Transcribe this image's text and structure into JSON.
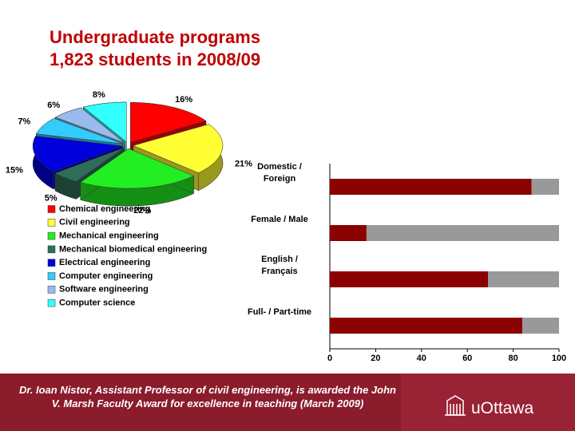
{
  "chart_data": [
    {
      "type": "pie",
      "title": "Undergraduate programs",
      "subtitle": "1,823 students in 2008/09",
      "categories": [
        "Chemical engineering",
        "Civil engineering",
        "Mechanical engineering",
        "Mechanical biomedical engineering",
        "Electrical engineering",
        "Computer engineering",
        "Software engineering",
        "Computer science"
      ],
      "values": [
        16,
        21,
        22,
        5,
        15,
        7,
        6,
        8
      ],
      "value_labels": [
        "16%",
        "21%",
        "22%",
        "5%",
        "15%",
        "7%",
        "6%",
        "8%"
      ],
      "colors": [
        "#ff0000",
        "#ffff33",
        "#22ee22",
        "#2e6e58",
        "#0000dd",
        "#33ccff",
        "#99bbee",
        "#33ffff"
      ]
    },
    {
      "type": "stacked-bar-horizontal",
      "categories": [
        "Domestic /\nForeign",
        "Female / Male",
        "English /\nFrançais",
        "Full- / Part-time"
      ],
      "series": [
        {
          "color": "#8b0000",
          "values": [
            88,
            16,
            69,
            84
          ]
        },
        {
          "color": "#999999",
          "values": [
            12,
            84,
            31,
            16
          ]
        }
      ],
      "xlim": [
        0,
        100
      ],
      "xticks": [
        0,
        20,
        40,
        60,
        80,
        100
      ]
    }
  ],
  "footer": {
    "text": "Dr. Ioan Nistor, Assistant Professor of civil engineering, is awarded the John V. Marsh Faculty Award for excellence in teaching (March 2009)",
    "logo": "uOttawa"
  }
}
